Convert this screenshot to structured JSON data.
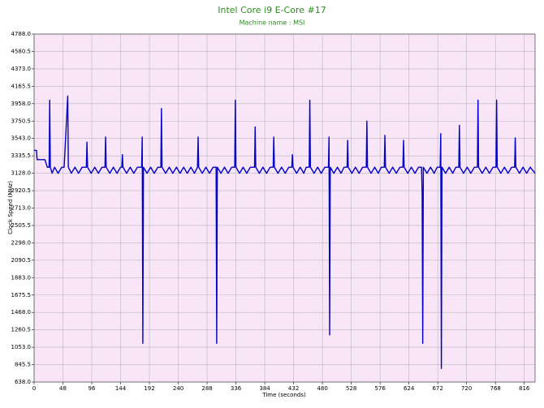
{
  "chart_data": {
    "type": "line",
    "title": "Intel Core i9 E-Core #17",
    "subtitle": "Machine name : MSI",
    "x_label": "Time (seconds)",
    "y_label": "Clock Speed (MHz)",
    "color": "#0000c8",
    "grid": true,
    "xlim": [
      0,
      834
    ],
    "ylim": [
      638,
      4788
    ],
    "xticks": [
      0,
      48,
      96,
      144,
      192,
      240,
      288,
      336,
      384,
      432,
      480,
      528,
      576,
      624,
      672,
      720,
      768,
      816
    ],
    "yticks": [
      {
        "value": 638,
        "label": "638.0"
      },
      845.5,
      {
        "value": 1053,
        "label": "1053.0"
      },
      1260.5,
      {
        "value": 1468,
        "label": "1468.0"
      },
      1675.5,
      {
        "value": 1883,
        "label": "1883.0"
      },
      2090.5,
      {
        "value": 2298,
        "label": "2298.0"
      },
      2505.5,
      {
        "value": 2713,
        "label": "2713.0"
      },
      2920.5,
      {
        "value": 3128,
        "label": "3128.0"
      },
      3335.5,
      {
        "value": 3543,
        "label": "3543.0"
      },
      3750.5,
      {
        "value": 3958,
        "label": "3958.0"
      },
      4165.5,
      {
        "value": 4373,
        "label": "4373.0"
      },
      4580.5,
      {
        "value": 4788,
        "label": "4788.0"
      }
    ],
    "x": [
      0,
      4,
      5,
      12,
      18,
      22,
      25,
      26,
      27,
      30,
      34,
      40,
      46,
      50,
      56,
      57,
      62,
      68,
      74,
      80,
      87,
      88,
      89,
      95,
      101,
      107,
      113,
      118,
      119,
      120,
      126,
      132,
      138,
      144,
      146,
      147,
      148,
      154,
      160,
      166,
      172,
      179,
      180,
      181,
      182,
      188,
      194,
      200,
      206,
      211,
      212,
      213,
      219,
      225,
      231,
      237,
      243,
      249,
      255,
      261,
      267,
      272,
      273,
      274,
      280,
      286,
      292,
      298,
      303,
      304,
      305,
      311,
      317,
      323,
      329,
      334,
      335,
      336,
      342,
      348,
      354,
      360,
      367,
      368,
      369,
      375,
      381,
      387,
      393,
      398,
      399,
      400,
      406,
      412,
      418,
      424,
      429,
      430,
      431,
      437,
      443,
      449,
      453,
      458,
      459,
      460,
      466,
      472,
      478,
      484,
      490,
      491,
      492,
      493,
      499,
      505,
      511,
      516,
      521,
      522,
      523,
      529,
      535,
      541,
      547,
      553,
      554,
      555,
      561,
      567,
      573,
      578,
      583,
      584,
      585,
      591,
      597,
      603,
      609,
      614,
      615,
      616,
      622,
      628,
      634,
      640,
      645,
      646,
      647,
      648,
      654,
      660,
      666,
      671,
      676,
      677,
      678,
      679,
      685,
      691,
      697,
      702,
      707,
      708,
      709,
      715,
      721,
      727,
      733,
      738,
      739,
      740,
      746,
      752,
      758,
      764,
      769,
      770,
      771,
      777,
      783,
      789,
      795,
      800,
      801,
      802,
      808,
      814,
      820,
      826,
      834
    ],
    "values": [
      3400,
      3400,
      3290,
      3290,
      3290,
      3200,
      3200,
      4000,
      3200,
      3128,
      3200,
      3128,
      3200,
      3200,
      4050,
      3200,
      3128,
      3200,
      3128,
      3200,
      3200,
      3500,
      3200,
      3128,
      3200,
      3128,
      3200,
      3200,
      3560,
      3200,
      3128,
      3200,
      3128,
      3200,
      3200,
      3350,
      3200,
      3128,
      3200,
      3128,
      3200,
      3200,
      3560,
      1100,
      3200,
      3128,
      3200,
      3128,
      3200,
      3200,
      3900,
      3200,
      3128,
      3200,
      3128,
      3200,
      3128,
      3200,
      3128,
      3200,
      3128,
      3200,
      3560,
      3200,
      3128,
      3200,
      3128,
      3200,
      3200,
      1100,
      3200,
      3128,
      3200,
      3128,
      3200,
      3200,
      4000,
      3200,
      3128,
      3200,
      3128,
      3200,
      3200,
      3680,
      3200,
      3128,
      3200,
      3128,
      3200,
      3200,
      3560,
      3200,
      3128,
      3200,
      3128,
      3200,
      3200,
      3350,
      3200,
      3128,
      3200,
      3128,
      3200,
      3200,
      4000,
      3200,
      3128,
      3200,
      3128,
      3200,
      3200,
      3560,
      1200,
      3200,
      3128,
      3200,
      3128,
      3200,
      3200,
      3520,
      3200,
      3128,
      3200,
      3128,
      3200,
      3200,
      3750,
      3200,
      3128,
      3200,
      3128,
      3200,
      3200,
      3580,
      3200,
      3128,
      3200,
      3128,
      3200,
      3200,
      3520,
      3200,
      3128,
      3200,
      3128,
      3200,
      3200,
      2900,
      1100,
      3200,
      3128,
      3200,
      3128,
      3200,
      3200,
      3600,
      800,
      3200,
      3128,
      3200,
      3128,
      3200,
      3200,
      3700,
      3200,
      3128,
      3200,
      3128,
      3200,
      3200,
      4000,
      3200,
      3128,
      3200,
      3128,
      3200,
      3200,
      4000,
      3200,
      3128,
      3200,
      3128,
      3200,
      3200,
      3550,
      3200,
      3128,
      3200,
      3128,
      3200,
      3128
    ]
  }
}
